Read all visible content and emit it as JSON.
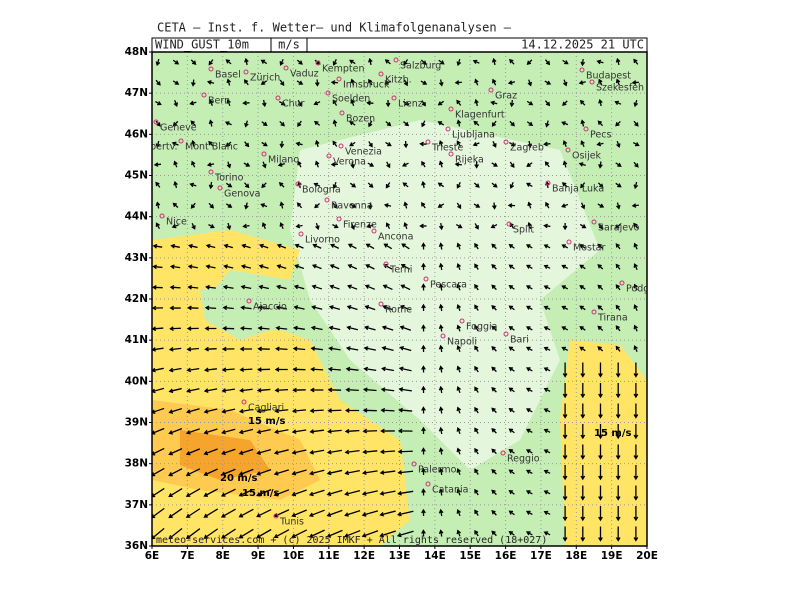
{
  "header": {
    "title": "CETA — Inst. f. Wetter— und Klimafolgenanalysen —",
    "field": "WIND_GUST_10m",
    "unit": "m/s",
    "valid_time": "14.12.2025 21 UTC"
  },
  "map": {
    "lat_ticks": [
      {
        "value": 48,
        "label": "48N"
      },
      {
        "value": 47,
        "label": "47N"
      },
      {
        "value": 46,
        "label": "46N"
      },
      {
        "value": 45,
        "label": "45N"
      },
      {
        "value": 44,
        "label": "44N"
      },
      {
        "value": 43,
        "label": "43N"
      },
      {
        "value": 42,
        "label": "42N"
      },
      {
        "value": 41,
        "label": "41N"
      },
      {
        "value": 40,
        "label": "40N"
      },
      {
        "value": 39,
        "label": "39N"
      },
      {
        "value": 38,
        "label": "38N"
      },
      {
        "value": 37,
        "label": "37N"
      },
      {
        "value": 36,
        "label": "36N"
      }
    ],
    "lon_ticks": [
      {
        "value": 6,
        "label": "6E"
      },
      {
        "value": 7,
        "label": "7E"
      },
      {
        "value": 8,
        "label": "8E"
      },
      {
        "value": 9,
        "label": "9E"
      },
      {
        "value": 10,
        "label": "10E"
      },
      {
        "value": 11,
        "label": "11E"
      },
      {
        "value": 12,
        "label": "12E"
      },
      {
        "value": 13,
        "label": "13E"
      },
      {
        "value": 14,
        "label": "14E"
      },
      {
        "value": 15,
        "label": "15E"
      },
      {
        "value": 16,
        "label": "16E"
      },
      {
        "value": 17,
        "label": "17E"
      },
      {
        "value": 18,
        "label": "18E"
      },
      {
        "value": 19,
        "label": "19E"
      },
      {
        "value": 20,
        "label": "20E"
      }
    ],
    "cities": [
      "Kempten",
      "Salzburg",
      "Basel",
      "Zürich",
      "Vaduz",
      "Bern",
      "Innsbruck",
      "Kitzb.",
      "Budapest",
      "Szekesfeh",
      "Graz",
      "Soelden",
      "Lienz",
      "Chur",
      "Bozen",
      "Klagenfurt",
      "Ljubljana",
      "Pecs",
      "Geneve",
      "Albertv.",
      "Mont Blanc",
      "Trieste",
      "Zagreb",
      "Osijek",
      "Venezia",
      "Milano",
      "Verona",
      "Rijeka",
      "Torino",
      "Banja Luka",
      "Genova",
      "Bologna",
      "Ravenna",
      "Firenze",
      "Sarajevo",
      "Nice",
      "Livorno",
      "Ancona",
      "Split",
      "Mostar",
      "Terni",
      "Pescara",
      "Podgorica",
      "Ajaccio",
      "Rome",
      "Foggia",
      "Tirana",
      "Bari",
      "Napoli",
      "Cagliari",
      "Palermo",
      "Reggio",
      "Catania",
      "Tunis"
    ],
    "contour_labels": [
      "15 m/s",
      "20 m/s",
      "15 m/s",
      "15 m/s"
    ]
  },
  "footer": "meteo-services.com + (c) 2025 IMKF + All rights reserved (18+027)"
}
